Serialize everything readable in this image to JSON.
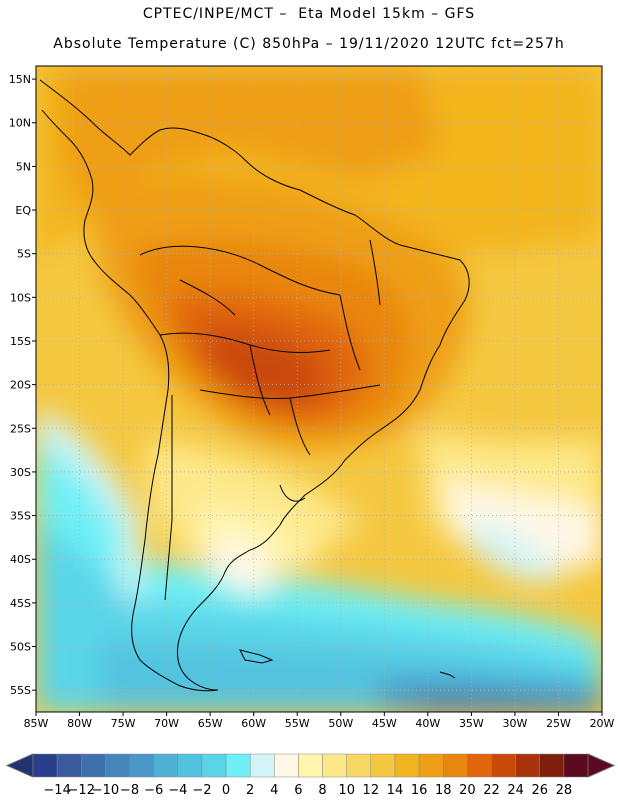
{
  "header": {
    "line1": "CPTEC/INPE/MCT –  Eta Model 15km – GFS",
    "line2": "Absolute Temperature (C) 850hPa – 19/11/2020 12UTC fct=257h"
  },
  "map": {
    "lat_labels": [
      "15N",
      "10N",
      "5N",
      "EQ",
      "5S",
      "10S",
      "15S",
      "20S",
      "25S",
      "30S",
      "35S",
      "40S",
      "45S",
      "50S",
      "55S"
    ],
    "lon_labels": [
      "85W",
      "80W",
      "75W",
      "70W",
      "65W",
      "60W",
      "55W",
      "50W",
      "45W",
      "40W",
      "35W",
      "30W",
      "25W",
      "20W"
    ],
    "lat_values": [
      15,
      10,
      5,
      0,
      -5,
      -10,
      -15,
      -20,
      -25,
      -30,
      -35,
      -40,
      -45,
      -50,
      -55
    ],
    "lon_values": [
      -85,
      -80,
      -75,
      -70,
      -65,
      -60,
      -55,
      -50,
      -45,
      -40,
      -35,
      -30,
      -25,
      -20
    ],
    "extent": {
      "lon_min": -85,
      "lon_max": -20,
      "lat_min": -57.5,
      "lat_max": 16.5
    }
  },
  "colorbar": {
    "labels": [
      "-14",
      "-12",
      "-10",
      "-8",
      "-6",
      "-4",
      "-2",
      "0",
      "2",
      "4",
      "6",
      "8",
      "10",
      "12",
      "14",
      "16",
      "18",
      "20",
      "22",
      "24",
      "26",
      "28"
    ],
    "colors": [
      "#2a3f8c",
      "#3a5a9e",
      "#3f70ae",
      "#4684bc",
      "#4b98c8",
      "#4fb0d6",
      "#52c3df",
      "#5ad5e8",
      "#6ff0f6",
      "#d2f4f8",
      "#fff8e6",
      "#fff5ad",
      "#fde98a",
      "#f8d865",
      "#f5c841",
      "#f3b51f",
      "#ef9f16",
      "#e9860f",
      "#e0650b",
      "#c94a08",
      "#a9330a",
      "#7e1e0c",
      "#5c0a1f"
    ],
    "under_color": "#233270",
    "over_color": "#5c0a1f"
  }
}
